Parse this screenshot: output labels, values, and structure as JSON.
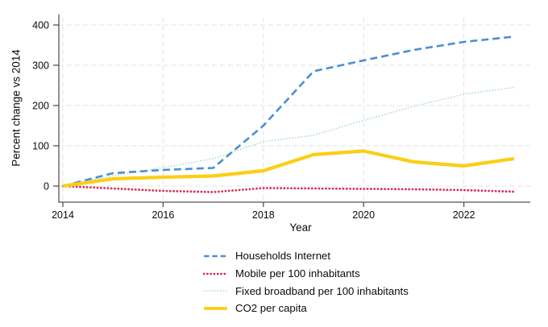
{
  "chart_data": {
    "type": "line",
    "title": "",
    "xlabel": "Year",
    "ylabel": "Percent change vs 2014",
    "x": [
      2014,
      2015,
      2016,
      2017,
      2018,
      2019,
      2020,
      2021,
      2022,
      2023
    ],
    "x_ticks": [
      2014,
      2016,
      2018,
      2020,
      2022
    ],
    "y_ticks": [
      0,
      100,
      200,
      300,
      400
    ],
    "ylim": [
      -40,
      420
    ],
    "grid": true,
    "legend_position": "bottom",
    "draw_order": [
      1,
      2,
      0,
      3
    ],
    "series": [
      {
        "name": "Households Internet",
        "color": "#4a8fd4",
        "style": "dashed",
        "dash": "9 5",
        "legend_dash": "6.5 3.8",
        "width": 2.6,
        "round_dots": false,
        "values": [
          0,
          32,
          40,
          45,
          150,
          285,
          312,
          338,
          358,
          371
        ]
      },
      {
        "name": "Mobile per 100 inhabitants",
        "color": "#d23458",
        "style": "dotted",
        "dash": "0.1 4.2",
        "legend_dash": "0.1 4.2",
        "width": 2.8,
        "round_dots": true,
        "values": [
          0,
          -6,
          -12,
          -15,
          -5,
          -6,
          -7,
          -8,
          -10,
          -14
        ]
      },
      {
        "name": "Fixed broadband per 100 inhabitants",
        "color": "#aedec8",
        "style": "dotted",
        "dash": "0.1 3.6",
        "legend_dash": "0.1 3.4",
        "width": 1.7,
        "round_dots": true,
        "values": [
          0,
          26,
          46,
          68,
          110,
          126,
          163,
          198,
          228,
          245
        ]
      },
      {
        "name": "CO2 per capita",
        "color": "#fbce17",
        "style": "solid",
        "dash": "",
        "legend_dash": "",
        "width": 4.2,
        "round_dots": false,
        "values": [
          0,
          18,
          22,
          25,
          38,
          78,
          87,
          60,
          50,
          68
        ]
      }
    ]
  }
}
